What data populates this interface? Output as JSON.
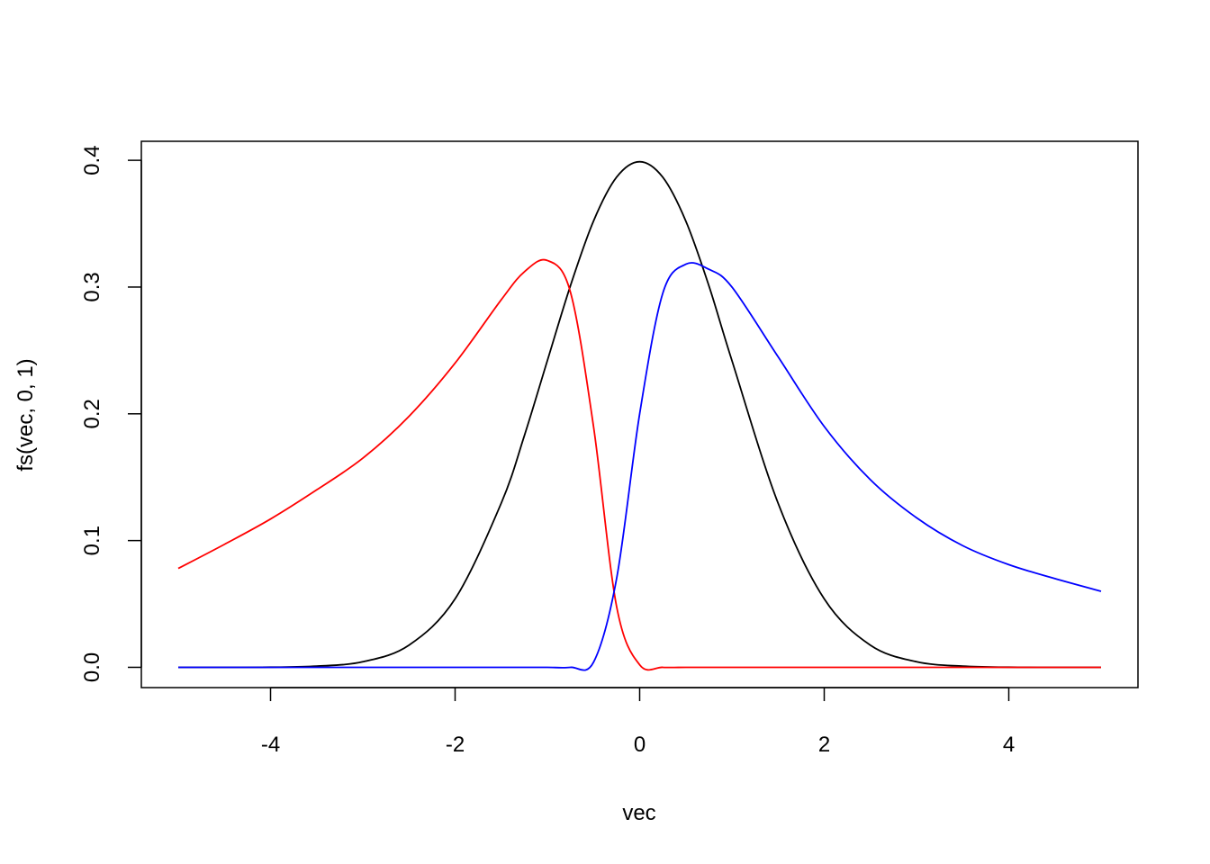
{
  "chart_data": {
    "type": "line",
    "title": "",
    "xlabel": "vec",
    "ylabel": "fs(vec, 0, 1)",
    "xlim": [
      -5.4,
      5.4
    ],
    "ylim": [
      -0.016,
      0.415
    ],
    "x_ticks": [
      -4,
      -2,
      0,
      2,
      4
    ],
    "x_tick_labels": [
      "-4",
      "-2",
      "0",
      "2",
      "4"
    ],
    "y_ticks": [
      0.0,
      0.1,
      0.2,
      0.3,
      0.4
    ],
    "y_tick_labels": [
      "0.0",
      "0.1",
      "0.2",
      "0.3",
      "0.4"
    ],
    "grid": false,
    "legend": "none",
    "x": [
      -5,
      -4.5,
      -4,
      -3.5,
      -3,
      -2.5,
      -2,
      -1.5,
      -1.25,
      -1,
      -0.75,
      -0.5,
      -0.25,
      0,
      0.25,
      0.5,
      0.75,
      1,
      1.5,
      2,
      2.5,
      3,
      3.5,
      4,
      4.5,
      5
    ],
    "series": [
      {
        "color": "#000000",
        "values": [
          0.0,
          0.0,
          0.0001,
          0.0009,
          0.0044,
          0.0175,
          0.054,
          0.1295,
          0.1826,
          0.242,
          0.3011,
          0.3521,
          0.3867,
          0.3989,
          0.3867,
          0.3521,
          0.3011,
          0.242,
          0.1295,
          0.054,
          0.0175,
          0.0044,
          0.0009,
          0.0001,
          0.0,
          0.0
        ]
      },
      {
        "color": "#ff0000",
        "values": [
          0.078,
          0.097,
          0.117,
          0.14,
          0.165,
          0.198,
          0.24,
          0.29,
          0.312,
          0.321,
          0.296,
          0.19,
          0.048,
          0.002,
          0.0,
          0.0,
          0.0,
          0.0,
          0.0,
          0.0,
          0.0,
          0.0,
          0.0,
          0.0,
          0.0,
          0.0
        ]
      },
      {
        "color": "#0000ff",
        "values": [
          0.0,
          0.0,
          0.0,
          0.0,
          0.0,
          0.0,
          0.0,
          0.0,
          0.0,
          0.0,
          0.0,
          0.004,
          0.07,
          0.2,
          0.295,
          0.318,
          0.314,
          0.3,
          0.245,
          0.19,
          0.148,
          0.118,
          0.096,
          0.081,
          0.07,
          0.06
        ]
      }
    ]
  }
}
